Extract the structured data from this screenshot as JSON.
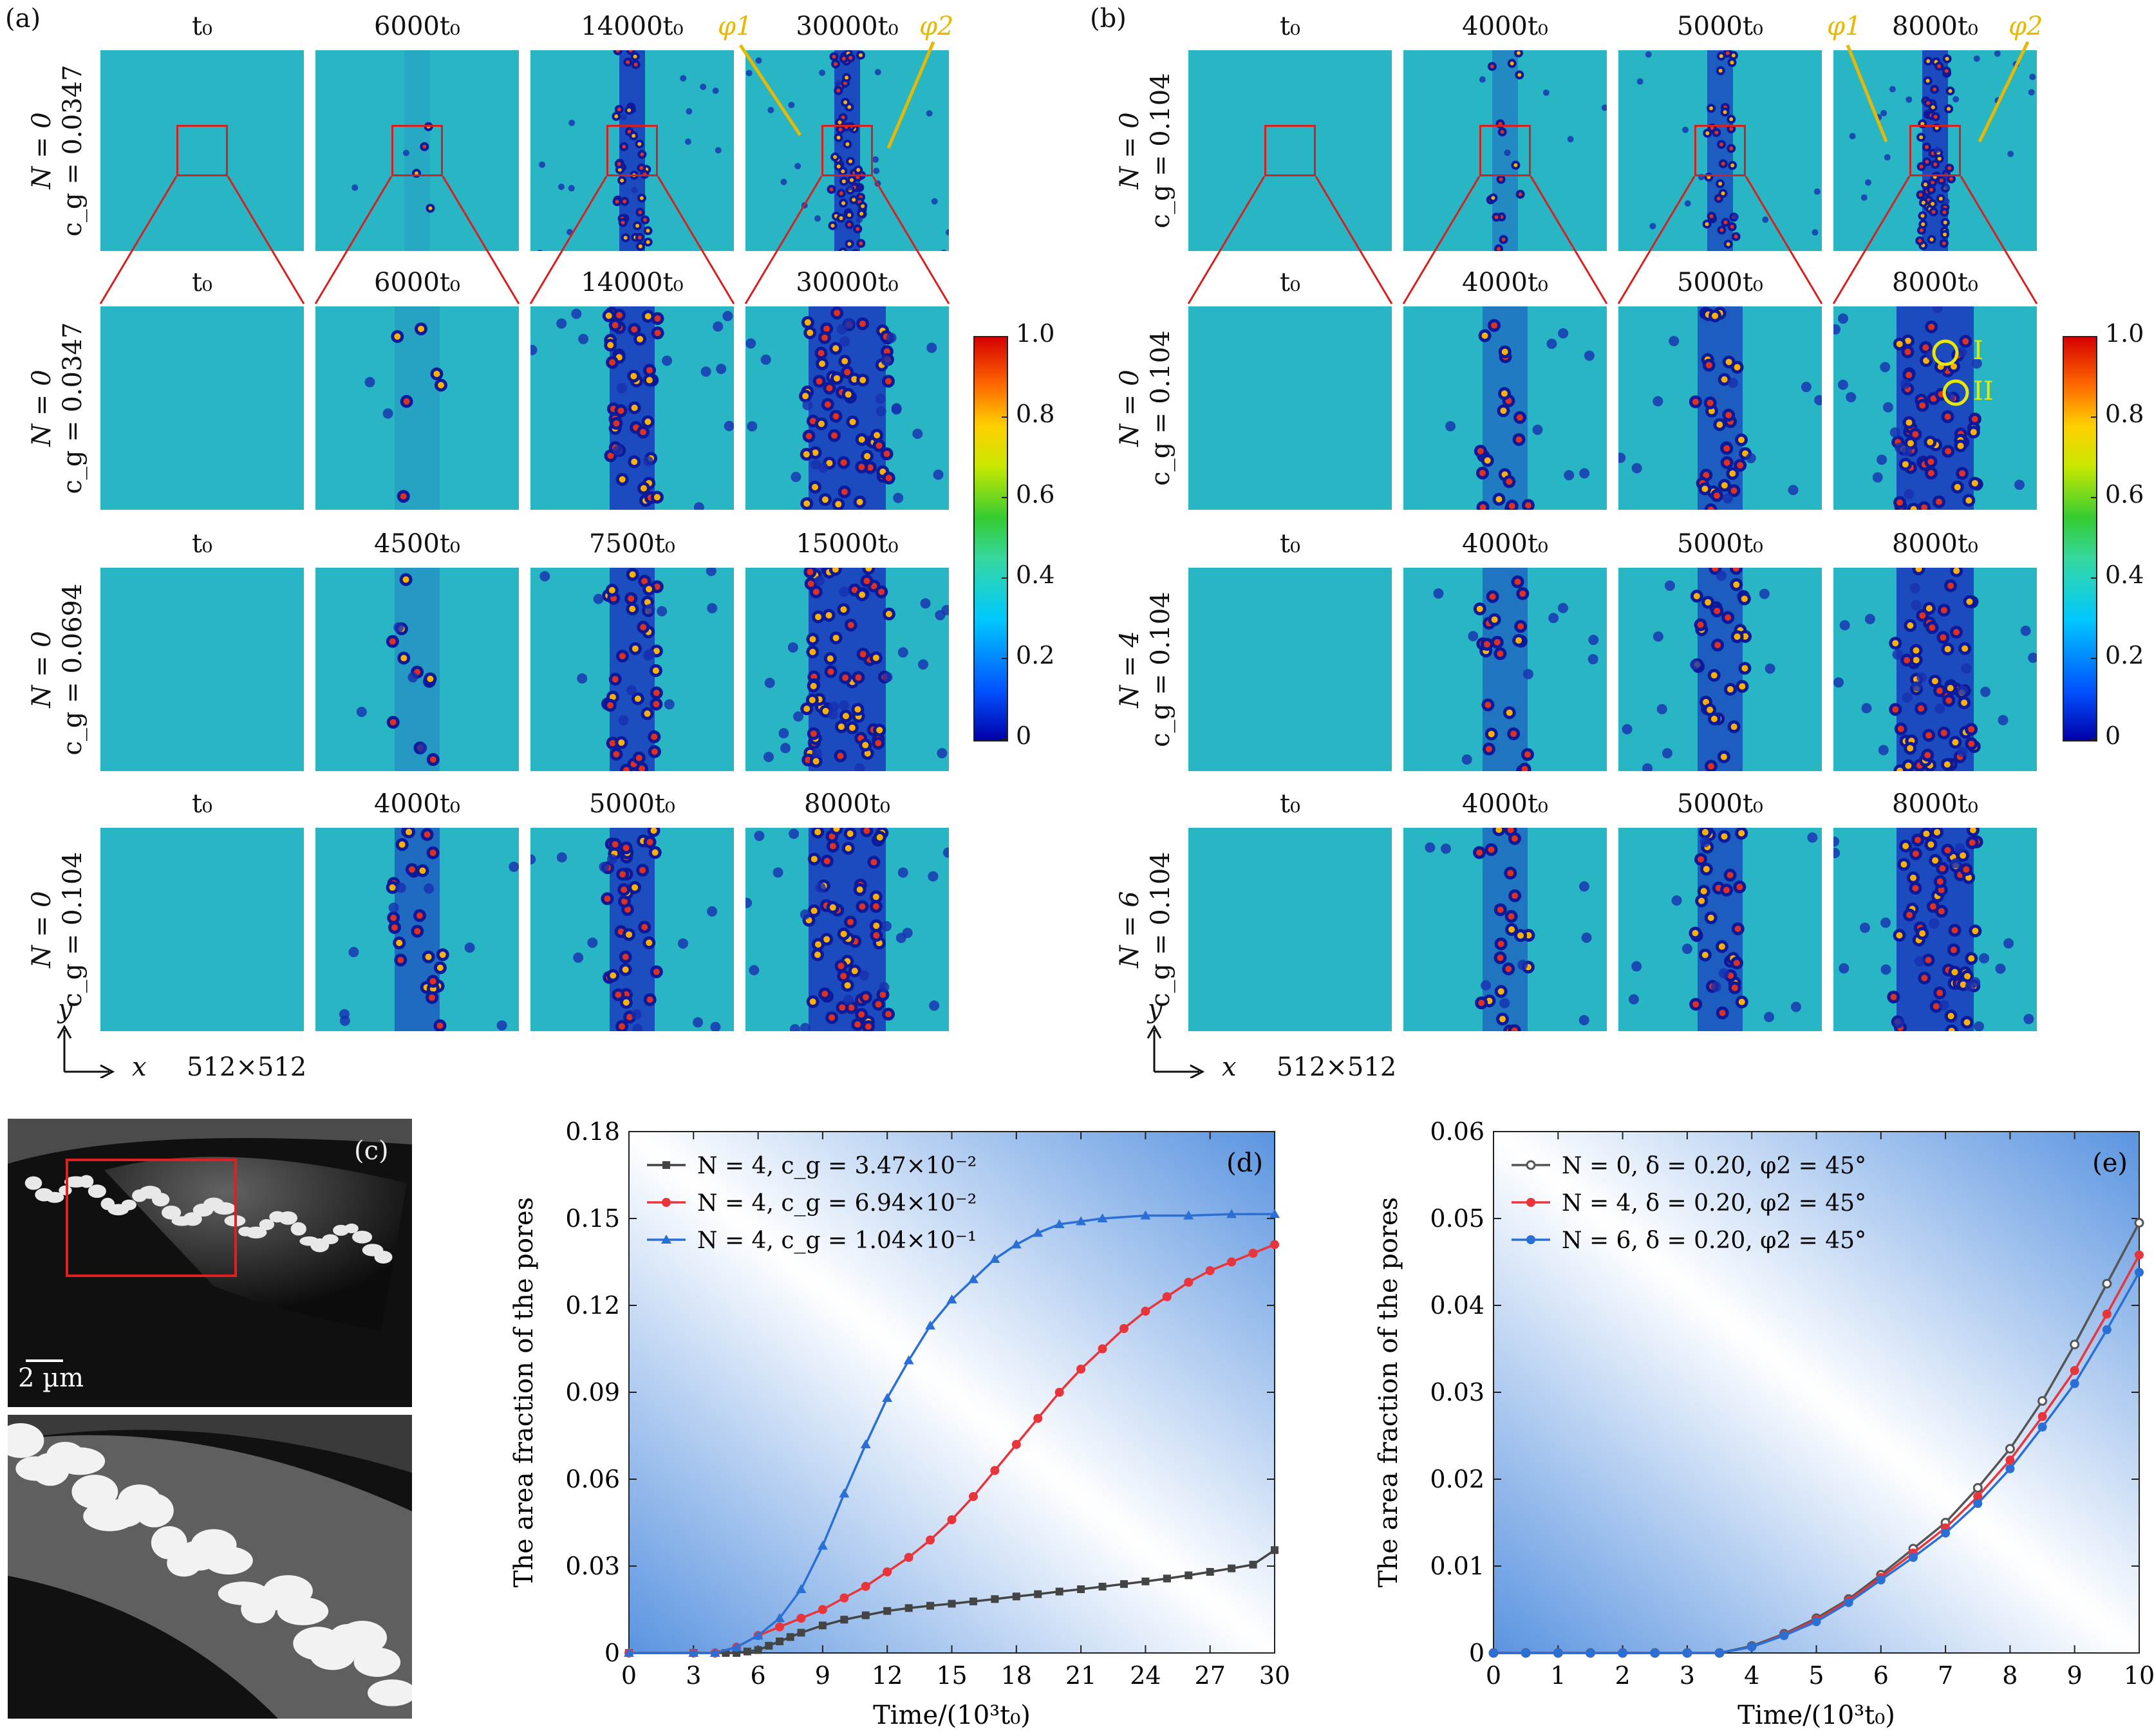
{
  "panels": {
    "a": {
      "label": "(a)",
      "rows": [
        {
          "n": "N = 0",
          "cg": "c_g = 0.0347",
          "times": [
            "t0",
            "6000t0",
            "14000t0",
            "30000t0"
          ]
        },
        {
          "n": "N = 0",
          "cg": "c_g = 0.0347",
          "times": [
            "t0",
            "6000t0",
            "14000t0",
            "30000t0"
          ]
        },
        {
          "n": "N = 0",
          "cg": "c_g = 0.0694",
          "times": [
            "t0",
            "4500t0",
            "7500t0",
            "15000t0"
          ]
        },
        {
          "n": "N = 0",
          "cg": "c_g = 0.104",
          "times": [
            "t0",
            "4000t0",
            "5000t0",
            "8000t0"
          ]
        }
      ],
      "phi1": "φ1",
      "phi2": "φ2"
    },
    "b": {
      "label": "(b)",
      "rows": [
        {
          "n": "N = 0",
          "cg": "c_g = 0.104",
          "times": [
            "t0",
            "4000t0",
            "5000t0",
            "8000t0"
          ]
        },
        {
          "n": "N = 0",
          "cg": "c_g = 0.104",
          "times": [
            "t0",
            "4000t0",
            "5000t0",
            "8000t0"
          ]
        },
        {
          "n": "N = 4",
          "cg": "c_g = 0.104",
          "times": [
            "t0",
            "4000t0",
            "5000t0",
            "8000t0"
          ]
        },
        {
          "n": "N = 6",
          "cg": "c_g = 0.104",
          "times": [
            "t0",
            "4000t0",
            "5000t0",
            "8000t0"
          ]
        }
      ],
      "phi1": "φ1",
      "phi2": "φ2",
      "markers": [
        "I",
        "II"
      ]
    },
    "c": {
      "label": "(c)",
      "scale_bar": "2 µm"
    },
    "axes": {
      "y": "y",
      "x": "x",
      "grid": "512×512"
    }
  },
  "colorbar": {
    "ticks": [
      "1.0",
      "0.8",
      "0.6",
      "0.4",
      "0.2",
      "0"
    ]
  },
  "chart_data": [
    {
      "panel": "(d)",
      "type": "line",
      "xlabel": "Time/(10³t₀)",
      "ylabel": "The area fraction of the pores",
      "xlim": [
        0,
        30
      ],
      "ylim": [
        0,
        0.18
      ],
      "xticks": [
        "0",
        "3",
        "6",
        "9",
        "12",
        "15",
        "18",
        "21",
        "24",
        "27",
        "30"
      ],
      "yticks": [
        "0",
        "0.03",
        "0.06",
        "0.09",
        "0.12",
        "0.15",
        "0.18"
      ],
      "legend": "top-left",
      "series": [
        {
          "name": "N = 4, c_g = 3.47×10⁻²",
          "color": "#444444",
          "marker": "square",
          "x": [
            0,
            3,
            4.5,
            5,
            5.5,
            6,
            6.5,
            7,
            7.5,
            8,
            9,
            10,
            11,
            12,
            13,
            14,
            15,
            16,
            17,
            18,
            19,
            20,
            21,
            22,
            23,
            24,
            25,
            26,
            27,
            28,
            29,
            30
          ],
          "values": [
            0,
            0,
            0,
            0,
            0.0005,
            0.001,
            0.0025,
            0.004,
            0.0055,
            0.007,
            0.0095,
            0.0115,
            0.013,
            0.0145,
            0.0155,
            0.0163,
            0.017,
            0.0178,
            0.0186,
            0.0195,
            0.0203,
            0.0212,
            0.022,
            0.0229,
            0.0238,
            0.0247,
            0.0257,
            0.0268,
            0.028,
            0.0292,
            0.0305,
            0.0355
          ]
        },
        {
          "name": "N = 4, c_g = 6.94×10⁻²",
          "color": "#e8343a",
          "marker": "circle",
          "x": [
            0,
            3,
            4,
            5,
            6,
            7,
            8,
            9,
            10,
            11,
            12,
            13,
            14,
            15,
            16,
            17,
            18,
            19,
            20,
            21,
            22,
            23,
            24,
            25,
            26,
            27,
            28,
            29,
            30
          ],
          "values": [
            0,
            0,
            0,
            0.002,
            0.006,
            0.009,
            0.012,
            0.015,
            0.019,
            0.023,
            0.028,
            0.033,
            0.039,
            0.046,
            0.054,
            0.063,
            0.072,
            0.081,
            0.09,
            0.098,
            0.105,
            0.112,
            0.118,
            0.123,
            0.128,
            0.132,
            0.135,
            0.138,
            0.141
          ]
        },
        {
          "name": "N = 4, c_g = 1.04×10⁻¹",
          "color": "#2a6fd6",
          "marker": "triangle",
          "x": [
            0,
            3,
            4,
            5,
            6,
            7,
            8,
            9,
            10,
            11,
            12,
            13,
            14,
            15,
            16,
            17,
            18,
            19,
            20,
            21,
            22,
            24,
            26,
            28,
            30
          ],
          "values": [
            0,
            0,
            0,
            0.002,
            0.006,
            0.012,
            0.022,
            0.037,
            0.055,
            0.072,
            0.088,
            0.101,
            0.113,
            0.122,
            0.129,
            0.136,
            0.141,
            0.145,
            0.148,
            0.149,
            0.15,
            0.151,
            0.151,
            0.1515,
            0.1515
          ]
        }
      ]
    },
    {
      "panel": "(e)",
      "type": "line",
      "xlabel": "Time/(10³t₀)",
      "ylabel": "The area fraction of the pores",
      "xlim": [
        0,
        10
      ],
      "ylim": [
        0,
        0.06
      ],
      "xticks": [
        "0",
        "1",
        "2",
        "3",
        "4",
        "5",
        "6",
        "7",
        "8",
        "9",
        "10"
      ],
      "yticks": [
        "0",
        "0.01",
        "0.02",
        "0.03",
        "0.04",
        "0.05",
        "0.06"
      ],
      "legend": "top-left",
      "series": [
        {
          "name": "N = 0, δ = 0.20, φ2 = 45°",
          "color": "#555555",
          "marker": "open-circle",
          "x": [
            0,
            0.5,
            1,
            1.5,
            2,
            2.5,
            3,
            3.5,
            4,
            4.5,
            5,
            5.5,
            6,
            6.5,
            7,
            7.5,
            8,
            8.5,
            9,
            9.5,
            10
          ],
          "values": [
            0,
            0,
            0,
            0,
            0,
            0,
            0,
            0,
            0.0008,
            0.0022,
            0.004,
            0.0062,
            0.009,
            0.012,
            0.015,
            0.019,
            0.0235,
            0.029,
            0.0355,
            0.0425,
            0.0495
          ]
        },
        {
          "name": "N = 4, δ = 0.20, φ2 = 45°",
          "color": "#e8343a",
          "marker": "circle",
          "x": [
            0,
            0.5,
            1,
            1.5,
            2,
            2.5,
            3,
            3.5,
            4,
            4.5,
            5,
            5.5,
            6,
            6.5,
            7,
            7.5,
            8,
            8.5,
            9,
            9.5,
            10
          ],
          "values": [
            0,
            0,
            0,
            0,
            0,
            0,
            0,
            0,
            0.0007,
            0.0021,
            0.0038,
            0.006,
            0.0087,
            0.0115,
            0.0144,
            0.018,
            0.0222,
            0.0272,
            0.0325,
            0.039,
            0.0458
          ]
        },
        {
          "name": "N = 6, δ = 0.20, φ2 = 45°",
          "color": "#2a6fd6",
          "marker": "circle",
          "x": [
            0,
            0.5,
            1,
            1.5,
            2,
            2.5,
            3,
            3.5,
            4,
            4.5,
            5,
            5.5,
            6,
            6.5,
            7,
            7.5,
            8,
            8.5,
            9,
            9.5,
            10
          ],
          "values": [
            0,
            0,
            0,
            0,
            0,
            0,
            0,
            0,
            0.0007,
            0.002,
            0.0036,
            0.0058,
            0.0084,
            0.011,
            0.0138,
            0.0172,
            0.0212,
            0.026,
            0.031,
            0.0372,
            0.0438
          ]
        }
      ]
    }
  ]
}
